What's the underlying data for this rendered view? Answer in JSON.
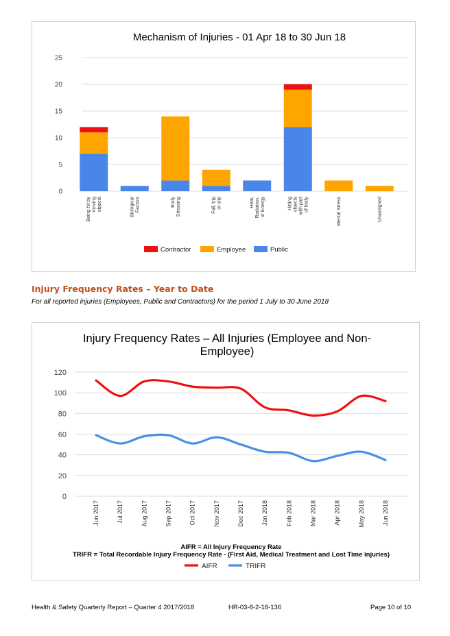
{
  "chart_data": [
    {
      "type": "bar",
      "stacked": true,
      "title": "Mechanism of Injuries - 01 Apr 18 to 30 Jun 18",
      "categories": [
        [
          "Being hit by",
          "moving",
          "objects"
        ],
        [
          "Biological",
          "Factors"
        ],
        [
          "Body",
          "Stressing"
        ],
        [
          "Fall, trip",
          "or slip"
        ],
        [
          "Heat,",
          "Radiation,",
          "or Energy"
        ],
        [
          "Hitting",
          "objects",
          "with part",
          "of body"
        ],
        [
          "Mental Stress"
        ],
        [
          "Unassigned"
        ]
      ],
      "series": [
        {
          "name": "Public",
          "color": "#4a86e8",
          "values": [
            7,
            1,
            2,
            1,
            2,
            12,
            0,
            0
          ]
        },
        {
          "name": "Employee",
          "color": "#ffa500",
          "values": [
            4,
            0,
            12,
            3,
            0,
            7,
            2,
            1
          ]
        },
        {
          "name": "Contractor",
          "color": "#ee1111",
          "values": [
            1,
            0,
            0,
            0,
            0,
            1,
            0,
            0
          ]
        }
      ],
      "legend_order": [
        "Contractor",
        "Employee",
        "Public"
      ],
      "legend_position": "bottom",
      "yticks": [
        "0",
        "5",
        "10",
        "15",
        "20",
        "25"
      ],
      "ylim": [
        0,
        25
      ],
      "grid": true
    },
    {
      "type": "line",
      "title": "Injury Frequency Rates – All Injuries (Employee and Non-Employee)",
      "title_lines": [
        "Injury Frequency Rates – All Injuries (Employee and Non-",
        "Employee)"
      ],
      "categories": [
        "Jun 2017",
        "Jul 2017",
        "Aug 2017",
        "Sep 2017",
        "Oct 2017",
        "Nov 2017",
        "Dec 2017",
        "Jan 2018",
        "Feb 2018",
        "Mar 2018",
        "Apr 2018",
        "May 2018",
        "Jun 2018"
      ],
      "series": [
        {
          "name": "AIFR",
          "color": "#ee1111",
          "values": [
            112,
            97,
            111,
            111,
            106,
            105,
            104,
            86,
            83,
            78,
            82,
            97,
            92
          ]
        },
        {
          "name": "TRIFR",
          "color": "#4a90e2",
          "values": [
            59,
            51,
            58,
            59,
            51,
            57,
            50,
            43,
            42,
            34,
            39,
            43,
            35
          ]
        }
      ],
      "yticks": [
        "0",
        "20",
        "40",
        "60",
        "80",
        "100",
        "120"
      ],
      "ylim": [
        0,
        120
      ],
      "grid": true,
      "legend_position": "bottom",
      "notes": [
        "AIFR = All Injury Frequency Rate",
        "TRIFR = Total Recordable Injury Frequency Rate - (First Aid, Medical Treatment and Lost Time injuries)"
      ]
    }
  ],
  "section": {
    "heading": "Injury Frequency Rates – Year to Date",
    "subheading": "For all reported injuries (Employees, Public and Contractors) for the period 1 July to 30 June 2018"
  },
  "footer": {
    "left": "Health & Safety Quarterly Report – Quarter 4  2017/2018",
    "middle": "HR-03-8-2-18-136",
    "right": "Page 10 of 10"
  }
}
